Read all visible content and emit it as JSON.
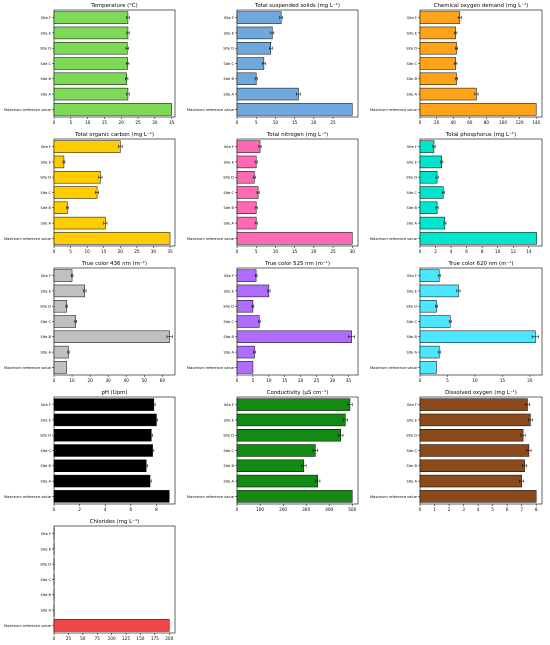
{
  "colors": {
    "temperature": "#7ed957",
    "tss": "#6fa8dc",
    "cod": "#ffa31a",
    "toc": "#ffcc00",
    "tn": "#ff69b4",
    "tp": "#00e5cc",
    "color436": "#c0c0c0",
    "color525": "#b06cff",
    "color620": "#4de6ff",
    "ph": "#000000",
    "conductivity": "#138a13",
    "do": "#8b4a1c",
    "chlorides": "#f04848"
  },
  "chart_data": [
    {
      "type": "bar",
      "id": "temperature",
      "title": "Temperature (°C)",
      "categories": [
        "Site F",
        "Site E",
        "Site D",
        "Site C",
        "Site B",
        "Site A",
        "Maximum reference value"
      ],
      "values": [
        22,
        22,
        21.8,
        21.9,
        21.6,
        22,
        35
      ],
      "errors": [
        0.4,
        0.4,
        0.4,
        0.4,
        0.4,
        0.4,
        0
      ],
      "xlim": [
        0,
        36
      ],
      "xticks": [
        0,
        5,
        10,
        15,
        20,
        25,
        30,
        35
      ]
    },
    {
      "type": "bar",
      "id": "tss",
      "title": "Total suspended solids (mg L⁻¹)",
      "categories": [
        "Site F",
        "Site E",
        "Site D",
        "Site C",
        "Site B",
        "Site A",
        "Maximum reference value"
      ],
      "values": [
        11.5,
        9.2,
        8.8,
        7,
        5,
        16,
        30
      ],
      "errors": [
        0.4,
        0.4,
        0.4,
        0.4,
        0.3,
        0.5,
        0
      ],
      "xlim": [
        0,
        31.5
      ],
      "xticks": [
        0,
        5,
        10,
        15,
        20,
        25
      ]
    },
    {
      "type": "bar",
      "id": "cod",
      "title": "Chemical oxygen demand (mg L⁻¹)",
      "categories": [
        "Site F",
        "Site E",
        "Site D",
        "Site C",
        "Site B",
        "Site A",
        "Maximum reference value"
      ],
      "values": [
        48,
        43,
        44,
        43,
        44,
        68,
        140
      ],
      "errors": [
        2,
        1.5,
        1.5,
        1.5,
        1.5,
        2,
        0
      ],
      "xlim": [
        0,
        147
      ],
      "xticks": [
        0,
        20,
        40,
        60,
        80,
        100,
        120,
        140
      ]
    },
    {
      "type": "bar",
      "id": "toc",
      "title": "Total organic carbon (mg L⁻¹)",
      "categories": [
        "Site F",
        "Site E",
        "Site D",
        "Site C",
        "Site B",
        "Site A",
        "Maximum reference value"
      ],
      "values": [
        20,
        3,
        14,
        13,
        4,
        15.5,
        35
      ],
      "errors": [
        0.6,
        0.3,
        0.5,
        0.5,
        0.3,
        0.5,
        0
      ],
      "xlim": [
        0,
        36.5
      ],
      "xticks": [
        0,
        5,
        10,
        15,
        20,
        25,
        30,
        35
      ]
    },
    {
      "type": "bar",
      "id": "tn",
      "title": "Total nitrogen (mg L⁻¹)",
      "categories": [
        "Site F",
        "Site E",
        "Site D",
        "Site C",
        "Site B",
        "Site A",
        "Maximum reference value"
      ],
      "values": [
        6,
        5,
        4.5,
        5.5,
        5,
        5,
        30
      ],
      "errors": [
        0.3,
        0.3,
        0.3,
        0.3,
        0.3,
        0.3,
        0
      ],
      "xlim": [
        0,
        31.5
      ],
      "xticks": [
        0,
        5,
        10,
        15,
        20,
        25,
        30
      ]
    },
    {
      "type": "bar",
      "id": "tp",
      "title": "Total phosphorus (mg L⁻¹)",
      "categories": [
        "Site F",
        "Site E",
        "Site D",
        "Site C",
        "Site B",
        "Site A",
        "Maximum reference value"
      ],
      "values": [
        1.8,
        2.8,
        2.2,
        3,
        2.2,
        3.2,
        15
      ],
      "errors": [
        0.15,
        0.15,
        0.15,
        0.15,
        0.15,
        0.15,
        0
      ],
      "xlim": [
        0,
        15.7
      ],
      "xticks": [
        0,
        2,
        4,
        6,
        8,
        10,
        12,
        14
      ]
    },
    {
      "type": "bar",
      "id": "color436",
      "title": "True color 436 nm (m⁻¹)",
      "categories": [
        "Site F",
        "Site E",
        "Site D",
        "Site C",
        "Site B",
        "Site A",
        "Maximum reference value"
      ],
      "values": [
        10,
        17,
        7,
        12,
        64,
        8,
        7
      ],
      "errors": [
        0.5,
        0.8,
        0.4,
        0.5,
        1.5,
        0.4,
        0
      ],
      "xlim": [
        0,
        67
      ],
      "xticks": [
        0,
        10,
        20,
        30,
        40,
        50,
        60
      ]
    },
    {
      "type": "bar",
      "id": "color525",
      "title": "True color 525 nm (m⁻¹)",
      "categories": [
        "Site F",
        "Site E",
        "Site D",
        "Site C",
        "Site B",
        "Site A",
        "Maximum reference value"
      ],
      "values": [
        6,
        10,
        5,
        7,
        36,
        5.5,
        5
      ],
      "errors": [
        0.3,
        0.4,
        0.3,
        0.3,
        1,
        0.3,
        0
      ],
      "xlim": [
        0,
        38
      ],
      "xticks": [
        0,
        5,
        10,
        15,
        20,
        25,
        30,
        35
      ]
    },
    {
      "type": "bar",
      "id": "color620",
      "title": "True color 620 nm (m⁻¹)",
      "categories": [
        "Site F",
        "Site E",
        "Site D",
        "Site C",
        "Site B",
        "Site A",
        "Maximum reference value"
      ],
      "values": [
        3.5,
        7,
        3,
        5.5,
        21,
        3.5,
        3
      ],
      "errors": [
        0.2,
        0.3,
        0.2,
        0.2,
        0.6,
        0.2,
        0
      ],
      "xlim": [
        0,
        22.2
      ],
      "xticks": [
        0,
        5,
        10,
        15,
        20
      ]
    },
    {
      "type": "bar",
      "id": "ph",
      "title": "pH (Upm)",
      "categories": [
        "Site F",
        "Site E",
        "Site D",
        "Site C",
        "Site B",
        "Site A",
        "Maximum reference value"
      ],
      "values": [
        7.8,
        8,
        7.6,
        7.7,
        7.2,
        7.5,
        9
      ],
      "errors": [
        0.1,
        0.1,
        0.1,
        0.1,
        0.1,
        0.1,
        0
      ],
      "xlim": [
        0,
        9.45
      ],
      "xticks": [
        0,
        2,
        4,
        6,
        8
      ]
    },
    {
      "type": "bar",
      "id": "conductivity",
      "title": "Conductivity (µS cm⁻¹)",
      "categories": [
        "Site F",
        "Site E",
        "Site D",
        "Site C",
        "Site B",
        "Site A",
        "Maximum reference value"
      ],
      "values": [
        490,
        470,
        450,
        340,
        290,
        350,
        500
      ],
      "errors": [
        10,
        10,
        10,
        10,
        10,
        10,
        0
      ],
      "xlim": [
        0,
        525
      ],
      "xticks": [
        0,
        100,
        200,
        300,
        400,
        500
      ]
    },
    {
      "type": "bar",
      "id": "do",
      "title": "Dissolved oxygen (mg L⁻¹)",
      "categories": [
        "Site F",
        "Site E",
        "Site D",
        "Site C",
        "Site B",
        "Site A",
        "Maximum reference value"
      ],
      "values": [
        7.4,
        7.6,
        7.1,
        7.5,
        7.2,
        7,
        8
      ],
      "errors": [
        0.15,
        0.15,
        0.15,
        0.15,
        0.15,
        0.15,
        0
      ],
      "xlim": [
        0,
        8.4
      ],
      "xticks": [
        0,
        1,
        2,
        3,
        4,
        5,
        6,
        7,
        8
      ]
    },
    {
      "type": "bar",
      "id": "chlorides",
      "title": "Chlorides (mg L⁻¹)",
      "categories": [
        "Site F",
        "Site E",
        "Site D",
        "Site C",
        "Site B",
        "Site A",
        "Maximum reference value"
      ],
      "values": [
        0.3,
        0.3,
        0.3,
        0.3,
        0.3,
        0.3,
        200
      ],
      "errors": [
        0,
        0,
        0,
        0,
        0,
        0,
        0
      ],
      "xlim": [
        0,
        210
      ],
      "xticks": [
        0,
        25,
        50,
        75,
        100,
        125,
        150,
        175,
        200
      ]
    }
  ]
}
